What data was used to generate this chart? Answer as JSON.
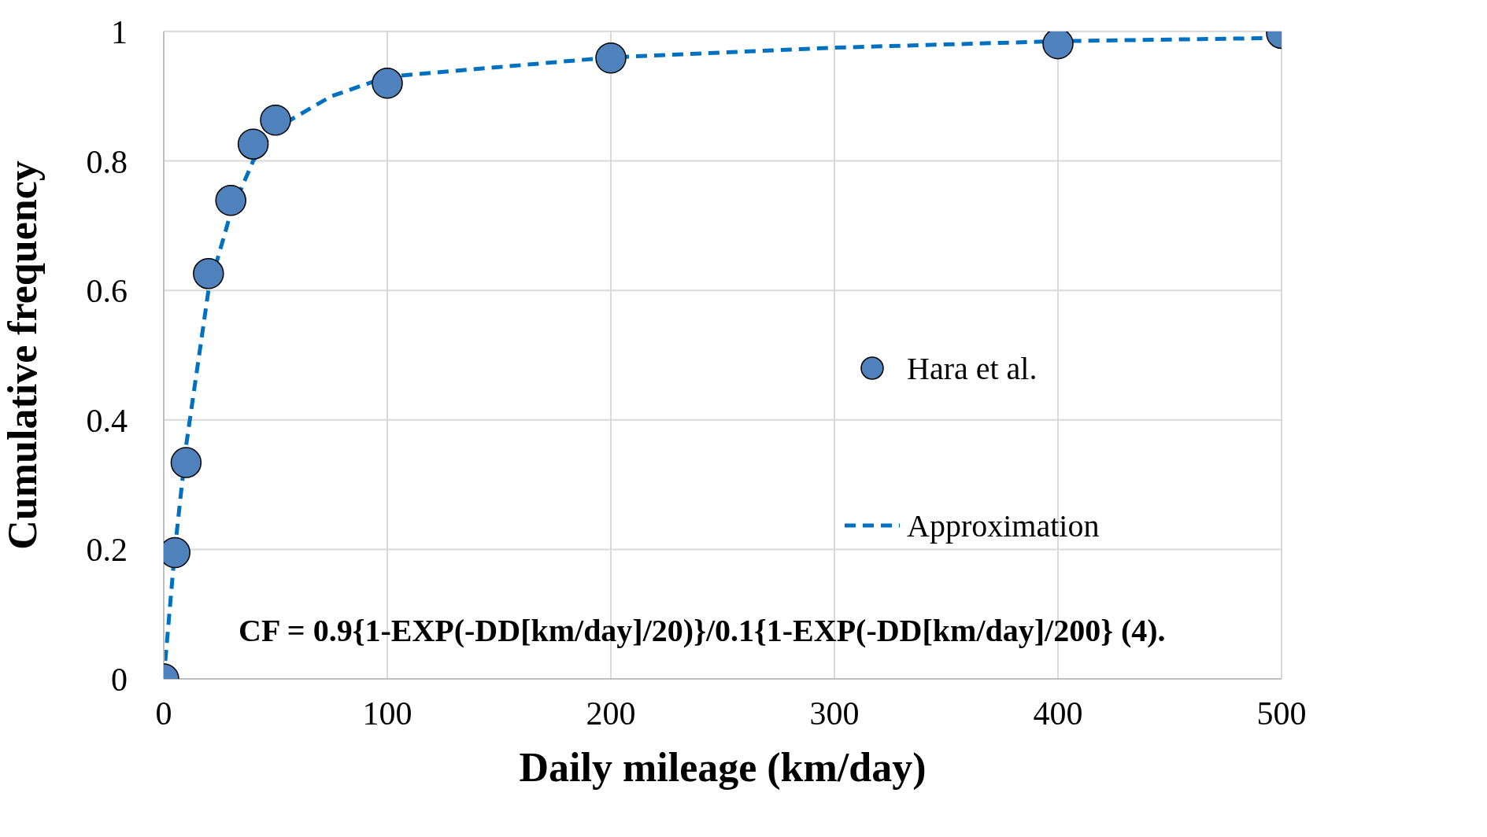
{
  "chart_data": {
    "type": "scatter",
    "xlabel": "Daily mileage (km/day)",
    "ylabel": "Cumulative frequency",
    "xlim": [
      0,
      500
    ],
    "xticks": [
      0,
      100,
      200,
      300,
      400,
      500
    ],
    "ylim": [
      0,
      1
    ],
    "yticks": [
      0,
      0.2,
      0.4,
      0.6,
      0.8,
      1
    ],
    "grid": true,
    "legend": "right",
    "annotations": [
      "CF = 0.9{1-EXP(-DD[km/day]/20)}/0.1{1-EXP(-DD[km/day]/200} (4)."
    ],
    "series": [
      {
        "name": "Hara et al.",
        "color": "#4f81bd",
        "marker": "circle",
        "x": [
          0,
          5,
          10,
          20,
          30,
          40,
          50,
          100,
          200,
          400,
          500
        ],
        "values": [
          0,
          0.195,
          0.334,
          0.626,
          0.739,
          0.826,
          0.863,
          0.92,
          0.959,
          0.981,
          0.997
        ]
      },
      {
        "name": "Approximation",
        "type": "line",
        "color": "#0070c0",
        "marker": "none",
        "line_style": "dashed",
        "x": [
          0,
          5,
          10,
          20,
          30,
          40,
          50,
          75,
          100,
          150,
          200,
          300,
          400,
          500
        ],
        "values": [
          0,
          0.2,
          0.36,
          0.6,
          0.72,
          0.8,
          0.85,
          0.9,
          0.93,
          0.945,
          0.96,
          0.975,
          0.985,
          0.99
        ]
      }
    ]
  }
}
